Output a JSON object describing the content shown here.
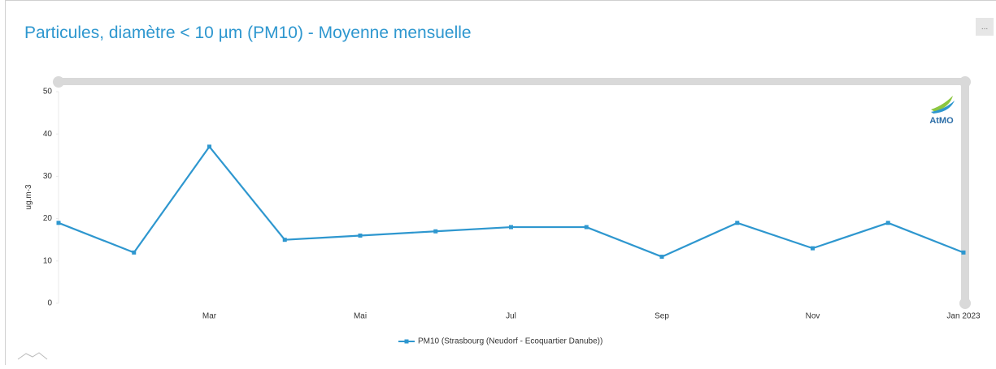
{
  "menu_label": "...",
  "logo_text": "AtMO",
  "chart_data": {
    "type": "line",
    "title": "Particules, diamètre < 10 µm (PM10) - Moyenne mensuelle",
    "y_label": "ug.m-3",
    "categories": [
      null,
      null,
      "Mar",
      null,
      "Mai",
      null,
      "Jul",
      null,
      "Sep",
      null,
      "Nov",
      null,
      "Jan 2023"
    ],
    "series": [
      {
        "name": "PM10 (Strasbourg (Neudorf - Ecoquartier Danube))",
        "color": "#2e97cf",
        "values": [
          19,
          12,
          37,
          15,
          16,
          17,
          18,
          18,
          11,
          19,
          13,
          19,
          12
        ]
      }
    ],
    "ylim": [
      0,
      50
    ],
    "yticks": [
      0,
      10,
      20,
      30,
      40,
      50
    ],
    "grid": false,
    "legend": "bottom"
  }
}
